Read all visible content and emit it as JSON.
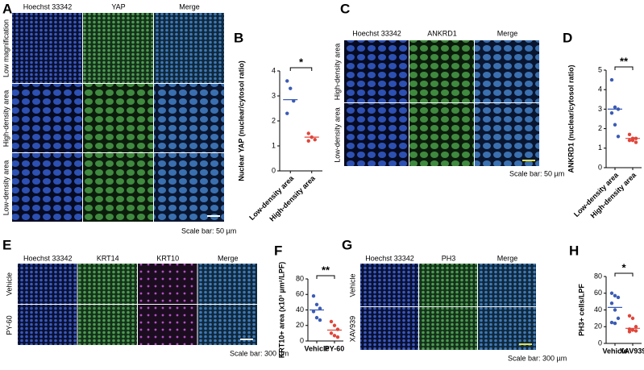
{
  "panels": [
    {
      "letter": "A",
      "columns": [
        "Hoechst 33342",
        "YAP",
        "Merge"
      ],
      "rows": [
        "Low magnification",
        "High-density area",
        "Low-density area"
      ],
      "scale": "Scale bar: 50 µm"
    },
    {
      "letter": "C",
      "columns": [
        "Hoechst 33342",
        "ANKRD1",
        "Merge"
      ],
      "rows": [
        "High-density area",
        "Low-density area"
      ],
      "scale": "Scale bar: 50 µm"
    },
    {
      "letter": "E",
      "columns": [
        "Hoechst 33342",
        "KRT14",
        "KRT10",
        "Merge"
      ],
      "rows": [
        "Vehicle",
        "PY-60"
      ],
      "scale": "Scale bar: 300 µm"
    },
    {
      "letter": "G",
      "columns": [
        "Hoechst 33342",
        "PH3",
        "Merge"
      ],
      "rows": [
        "Vehicle",
        "XAV939"
      ],
      "scale": "Scale bar: 300 µm"
    }
  ],
  "chart_data": [
    {
      "type": "strip",
      "label": "B",
      "ylabel": "Nuclear YAP (nuclear/cytosol ratio)",
      "categories": [
        "Low-density area",
        "High-density area"
      ],
      "series": [
        {
          "color": "#3b5bb5",
          "values": [
            3.6,
            3.3,
            2.8,
            2.3
          ],
          "mean": 2.85
        },
        {
          "color": "#e0453a",
          "values": [
            1.5,
            1.35,
            1.25,
            1.2
          ],
          "mean": 1.35
        }
      ],
      "ylim": [
        0,
        4
      ],
      "yticks": [
        0,
        1,
        2,
        3,
        4
      ],
      "annotation": "*"
    },
    {
      "type": "strip",
      "label": "D",
      "ylabel": "ANKRD1 (nuclear/cytosol ratio)",
      "categories": [
        "Low-density area",
        "High-density area"
      ],
      "series": [
        {
          "color": "#3b5bb5",
          "values": [
            4.5,
            3.1,
            3.0,
            2.8,
            2.2,
            1.6
          ],
          "mean": 3.0
        },
        {
          "color": "#e0453a",
          "values": [
            1.7,
            1.5,
            1.5,
            1.4,
            1.4,
            1.3
          ],
          "mean": 1.5
        }
      ],
      "ylim": [
        0,
        5
      ],
      "yticks": [
        0,
        1,
        2,
        3,
        4,
        5
      ],
      "annotation": "**"
    },
    {
      "type": "strip",
      "label": "F",
      "ylabel": "KRT10+ area (x10³ µm²/LPF)",
      "categories": [
        "Vehicle",
        "PY-60"
      ],
      "series": [
        {
          "color": "#3b5bb5",
          "values": [
            58,
            47,
            42,
            38,
            30,
            27
          ],
          "mean": 40
        },
        {
          "color": "#e0453a",
          "values": [
            25,
            20,
            15,
            10,
            7,
            5
          ],
          "mean": 14
        }
      ],
      "ylim": [
        0,
        80
      ],
      "yticks": [
        0,
        20,
        40,
        60,
        80
      ],
      "annotation": "**"
    },
    {
      "type": "strip",
      "label": "H",
      "ylabel": "PH3+ cells/LPF",
      "categories": [
        "Vehicle",
        "XAV939"
      ],
      "series": [
        {
          "color": "#3b5bb5",
          "values": [
            60,
            57,
            55,
            48,
            40,
            30,
            25,
            24
          ],
          "mean": 43
        },
        {
          "color": "#e0453a",
          "values": [
            33,
            30,
            20,
            17,
            16,
            15,
            14
          ],
          "mean": 18
        }
      ],
      "ylim": [
        0,
        80
      ],
      "yticks": [
        0,
        20,
        40,
        60,
        80
      ],
      "annotation": "*"
    }
  ]
}
